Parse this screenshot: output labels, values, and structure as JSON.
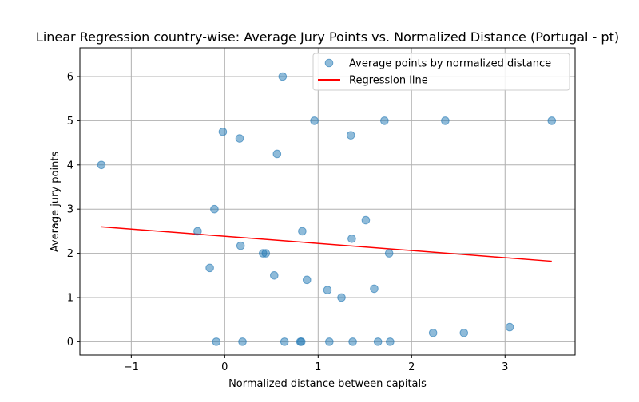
{
  "chart_data": {
    "type": "scatter",
    "title": "Linear Regression country-wise: Average Jury Points vs. Normalized Distance (Portugal - pt)",
    "xlabel": "Normalized distance between capitals",
    "ylabel": "Average jury points",
    "xlim": [
      -1.55,
      3.75
    ],
    "ylim": [
      -0.3,
      6.65
    ],
    "xticks": [
      -1,
      0,
      1,
      2,
      3
    ],
    "yticks": [
      0,
      1,
      2,
      3,
      4,
      5,
      6
    ],
    "grid": true,
    "legend": {
      "position": "top-right"
    },
    "series": [
      {
        "name": "Average points by normalized distance",
        "kind": "scatter",
        "color": "#1f77b4",
        "x": [
          -1.32,
          0.62,
          -0.02,
          0.16,
          0.96,
          1.71,
          2.36,
          3.5,
          1.35,
          0.56,
          -0.11,
          -0.29,
          0.83,
          1.51,
          1.36,
          0.17,
          0.41,
          0.44,
          1.76,
          -0.16,
          0.53,
          0.88,
          1.1,
          1.25,
          1.6,
          2.23,
          2.56,
          3.05,
          -0.09,
          0.19,
          0.64,
          0.81,
          0.82,
          1.12,
          1.37,
          1.64,
          1.77
        ],
        "y": [
          4.0,
          6.0,
          4.75,
          4.6,
          5.0,
          5.0,
          5.0,
          5.0,
          4.67,
          4.25,
          3.0,
          2.5,
          2.5,
          2.75,
          2.33,
          2.17,
          2.0,
          2.0,
          2.0,
          1.67,
          1.5,
          1.4,
          1.17,
          1.0,
          1.2,
          0.2,
          0.2,
          0.33,
          0.0,
          0.0,
          0.0,
          0.0,
          0.0,
          0.0,
          0.0,
          0.0,
          0.0
        ]
      },
      {
        "name": "Regression line",
        "kind": "line",
        "color": "#ff0000",
        "x": [
          -1.32,
          3.5
        ],
        "y": [
          2.6,
          1.82
        ]
      }
    ]
  }
}
